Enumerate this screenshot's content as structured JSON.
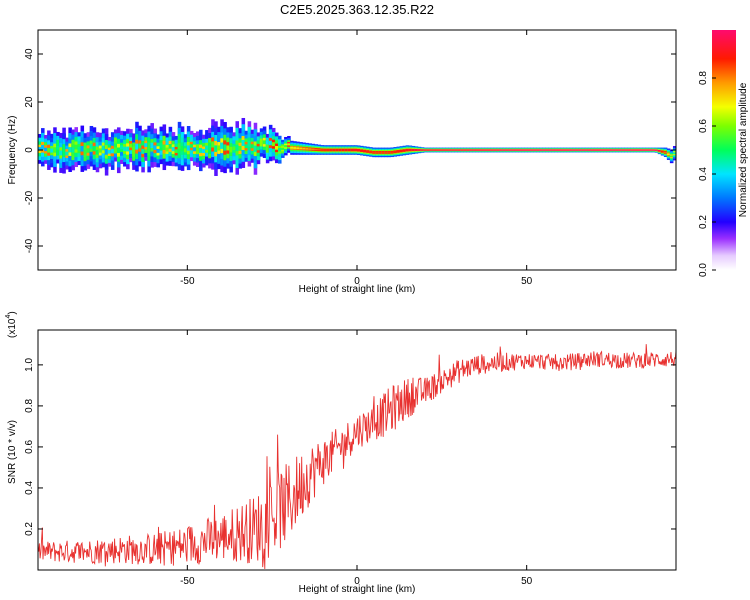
{
  "title": "C2E5.2025.363.12.35.R22",
  "chart_data": [
    {
      "type": "heatmap",
      "title": "C2E5.2025.363.12.35.R22",
      "xlabel": "Height of straight line (km)",
      "ylabel": "Frequency (Hz)",
      "xlim": [
        -94,
        94
      ],
      "ylim": [
        -50,
        50
      ],
      "xticks": [
        -50,
        0,
        50
      ],
      "yticks": [
        -40,
        -20,
        0,
        20,
        40
      ],
      "colorbar": {
        "label": "Normalized spectral amplitude",
        "range": [
          0,
          1
        ],
        "ticks": [
          0.0,
          0.2,
          0.4,
          0.6,
          0.8
        ]
      },
      "ridge": {
        "description": "dominant frequency vs height",
        "x": [
          -94,
          -80,
          -60,
          -40,
          -30,
          -25,
          -20,
          -10,
          0,
          5,
          10,
          15,
          20,
          50,
          88,
          91,
          93,
          94
        ],
        "freq": [
          0,
          0,
          1,
          1,
          2,
          2,
          1,
          0,
          0,
          -1,
          -1,
          0,
          0,
          0,
          0,
          -1,
          -3,
          0
        ],
        "spread_hz": [
          7,
          8,
          8,
          9,
          9,
          6,
          3,
          2,
          2,
          2,
          2,
          2,
          1,
          1,
          1,
          2,
          3,
          3
        ],
        "amplitude": [
          0.45,
          0.45,
          0.45,
          0.48,
          0.5,
          0.55,
          0.65,
          0.85,
          0.9,
          0.85,
          0.85,
          0.9,
          0.95,
          1.0,
          1.0,
          0.8,
          0.5,
          0.4
        ]
      }
    },
    {
      "type": "line",
      "xlabel": "Height of straight line (km)",
      "ylabel": "SNR (10 * v/v)",
      "y_multiplier": "(x10",
      "y_multiplier_exp": "4",
      "y_multiplier_close": ")",
      "xlim": [
        -94,
        94
      ],
      "ylim": [
        0.0,
        1.17
      ],
      "xticks": [
        -50,
        0,
        50
      ],
      "yticks": [
        0.2,
        0.4,
        0.6,
        0.8,
        1.0
      ],
      "series": [
        {
          "name": "SNR",
          "color": "#e8312f",
          "trend_x": [
            -94,
            -80,
            -70,
            -60,
            -50,
            -40,
            -30,
            -25,
            -20,
            -15,
            -10,
            -5,
            0,
            5,
            10,
            15,
            20,
            25,
            30,
            35,
            40,
            50,
            60,
            70,
            80,
            94
          ],
          "trend_y": [
            0.09,
            0.09,
            0.1,
            0.1,
            0.12,
            0.16,
            0.2,
            0.26,
            0.33,
            0.45,
            0.53,
            0.6,
            0.68,
            0.72,
            0.78,
            0.84,
            0.87,
            0.92,
            0.97,
            1.0,
            1.01,
            1.02,
            1.01,
            1.03,
            1.02,
            1.03
          ],
          "noise_y": [
            0.05,
            0.06,
            0.07,
            0.08,
            0.1,
            0.12,
            0.17,
            0.2,
            0.2,
            0.16,
            0.12,
            0.1,
            0.09,
            0.09,
            0.12,
            0.1,
            0.07,
            0.06,
            0.06,
            0.05,
            0.05,
            0.04,
            0.04,
            0.04,
            0.04,
            0.04
          ]
        }
      ]
    }
  ]
}
